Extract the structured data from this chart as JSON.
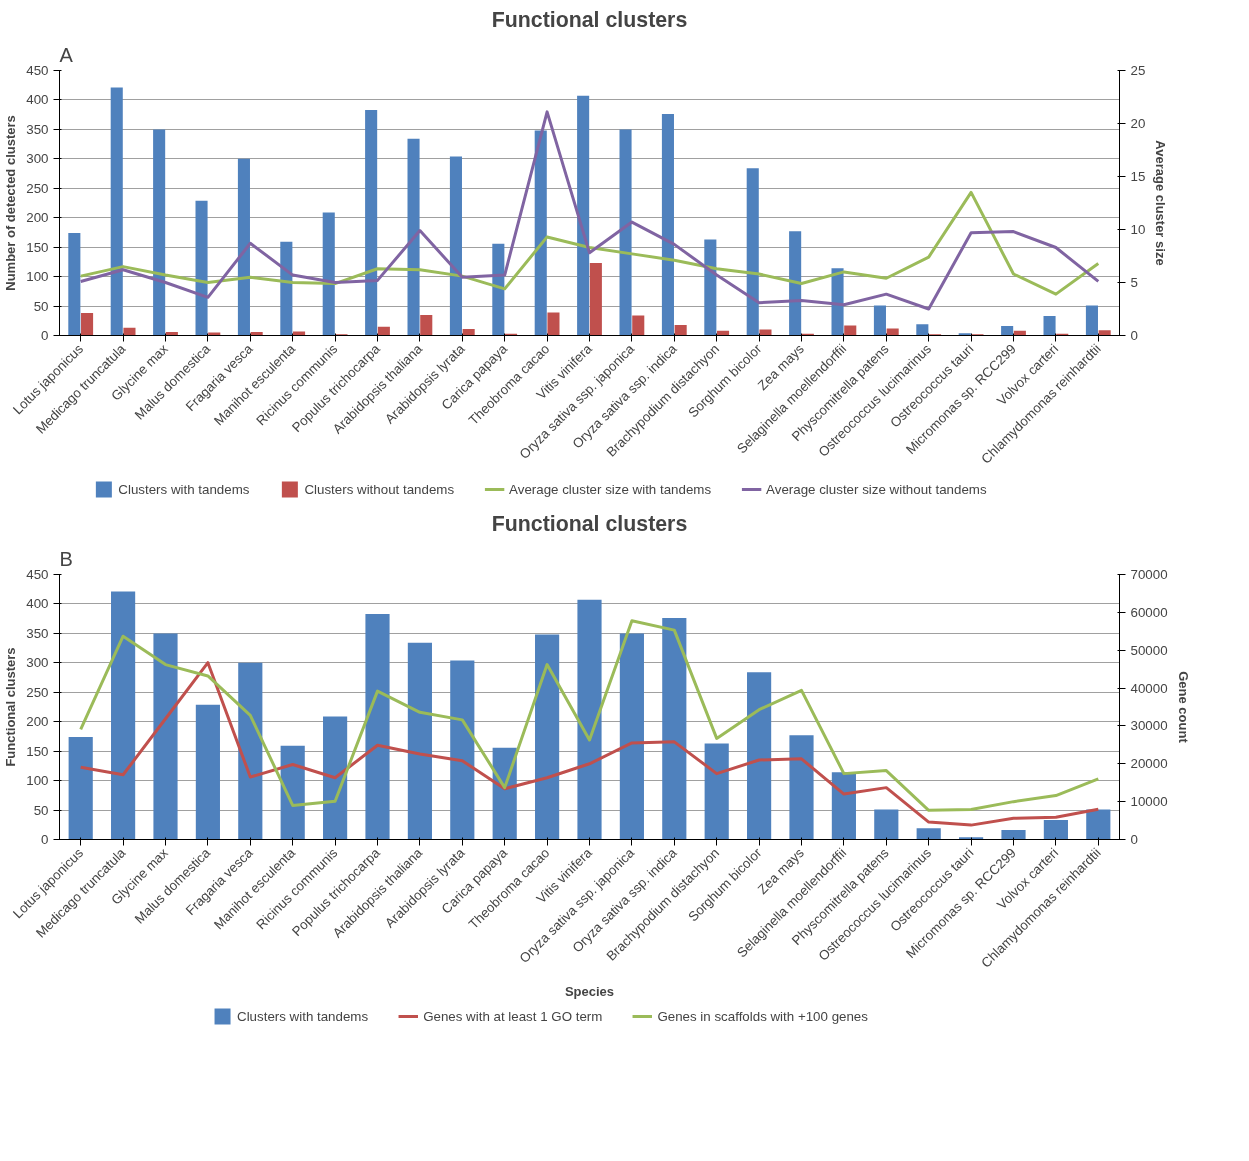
{
  "chart_data": [
    {
      "type": "bar",
      "title": "Functional clusters",
      "annotations": [
        "A"
      ],
      "ylabel": "Number of detected clusters",
      "y2label": "Average cluster size",
      "categories": [
        "Lotus japonicus",
        "Medicago truncatula",
        "Glycine max",
        "Malus domestica",
        "Fragaria vesca",
        "Manihot esculenta",
        "Ricinus communis",
        "Populus trichocarpa",
        "Arabidopsis thaliana",
        "Arabidopsis lyrata",
        "Carica papaya",
        "Theobroma cacao",
        "Vitis vinifera",
        "Oryza sativa ssp. japonica",
        "Oryza sativa ssp. indica",
        "Brachypodium distachyon",
        "Sorghum bicolor",
        "Zea mays",
        "Selaginella moellendorffii",
        "Physcomitrella patens",
        "Ostreococcus lucimarinus",
        "Ostreococcus tauri",
        "Micromonas sp. RCC299",
        "Volvox carteri",
        "Chlamydomonas reinhardtii"
      ],
      "series": [
        {
          "name": "Clusters with tandems",
          "type": "bar",
          "color": "#4f81bd",
          "values": [
            174,
            421,
            350,
            229,
            300,
            159,
            209,
            383,
            334,
            304,
            156,
            348,
            407,
            350,
            376,
            163,
            284,
            177,
            114,
            51,
            19,
            4,
            16,
            33,
            51
          ]
        },
        {
          "name": "Clusters without tandems",
          "type": "bar",
          "color": "#c0504d",
          "values": [
            38,
            13,
            6,
            5,
            6,
            7,
            2,
            15,
            35,
            11,
            3,
            39,
            123,
            34,
            18,
            8,
            10,
            3,
            17,
            12,
            2,
            2,
            8,
            3,
            9
          ]
        },
        {
          "name": "Average cluster size with tandems",
          "type": "line",
          "axis": "y2",
          "color": "#9bbb59",
          "values": [
            5.6,
            6.5,
            5.7,
            5.0,
            5.5,
            5.0,
            4.9,
            6.3,
            6.2,
            5.6,
            4.4,
            9.3,
            8.3,
            7.7,
            7.1,
            6.3,
            5.8,
            4.9,
            6.0,
            5.4,
            7.4,
            13.5,
            5.8,
            3.9,
            6.8
          ]
        },
        {
          "name": "Average cluster size without tandems",
          "type": "line",
          "axis": "y2",
          "color": "#8064a2",
          "values": [
            5.1,
            6.2,
            5.0,
            3.6,
            8.7,
            5.7,
            5.0,
            5.2,
            9.9,
            5.5,
            5.7,
            21.1,
            7.8,
            10.7,
            8.6,
            5.7,
            3.1,
            3.3,
            2.9,
            3.9,
            2.5,
            9.7,
            9.8,
            8.3,
            5.1
          ]
        }
      ],
      "ylim": [
        0,
        450
      ],
      "yticks": [
        0,
        50,
        100,
        150,
        200,
        250,
        300,
        350,
        400,
        450
      ],
      "y2lim": [
        0,
        25
      ],
      "y2ticks": [
        0,
        5,
        10,
        15,
        20,
        25
      ],
      "grid": "y",
      "legend": "bottom"
    },
    {
      "type": "bar",
      "title": "Functional clusters",
      "annotations": [
        "B"
      ],
      "xlabel": "Species",
      "ylabel": "Functional clusters",
      "y2label": "Gene count",
      "categories": [
        "Lotus japonicus",
        "Medicago truncatula",
        "Glycine max",
        "Malus domestica",
        "Fragaria vesca",
        "Manihot esculenta",
        "Ricinus communis",
        "Populus trichocarpa",
        "Arabidopsis thaliana",
        "Arabidopsis lyrata",
        "Carica papaya",
        "Theobroma cacao",
        "Vitis vinifera",
        "Oryza sativa ssp. japonica",
        "Oryza sativa ssp. indica",
        "Brachypodium distachyon",
        "Sorghum bicolor",
        "Zea mays",
        "Selaginella moellendorffii",
        "Physcomitrella patens",
        "Ostreococcus lucimarinus",
        "Ostreococcus tauri",
        "Micromonas sp. RCC299",
        "Volvox carteri",
        "Chlamydomonas reinhardtii"
      ],
      "series": [
        {
          "name": "Clusters with tandems",
          "type": "bar",
          "color": "#4f81bd",
          "values": [
            174,
            421,
            350,
            229,
            300,
            159,
            209,
            383,
            334,
            304,
            156,
            348,
            407,
            350,
            376,
            163,
            284,
            177,
            114,
            51,
            19,
            4,
            16,
            33,
            51
          ]
        },
        {
          "name": "Genes with at least 1 GO term",
          "type": "line",
          "axis": "y2",
          "color": "#c0504d",
          "values": [
            19100,
            17100,
            31900,
            46700,
            16500,
            19800,
            16300,
            24900,
            22600,
            20800,
            13400,
            16300,
            20000,
            25500,
            25800,
            17400,
            21000,
            21300,
            12000,
            13700,
            4600,
            3800,
            5600,
            5900,
            8000
          ]
        },
        {
          "name": "Genes in scaffolds with +100 genes",
          "type": "line",
          "axis": "y2",
          "color": "#9bbb59",
          "values": [
            29100,
            53700,
            46200,
            43200,
            32800,
            9000,
            10100,
            39200,
            33600,
            31600,
            13700,
            46200,
            26300,
            57800,
            55300,
            26700,
            34300,
            39400,
            17400,
            18200,
            7700,
            7900,
            10000,
            11600,
            16000
          ]
        }
      ],
      "ylim": [
        0,
        450
      ],
      "yticks": [
        0,
        50,
        100,
        150,
        200,
        250,
        300,
        350,
        400,
        450
      ],
      "y2lim": [
        0,
        70000
      ],
      "y2ticks": [
        0,
        10000,
        20000,
        30000,
        40000,
        50000,
        60000,
        70000
      ],
      "grid": "y",
      "legend": "bottom"
    }
  ]
}
